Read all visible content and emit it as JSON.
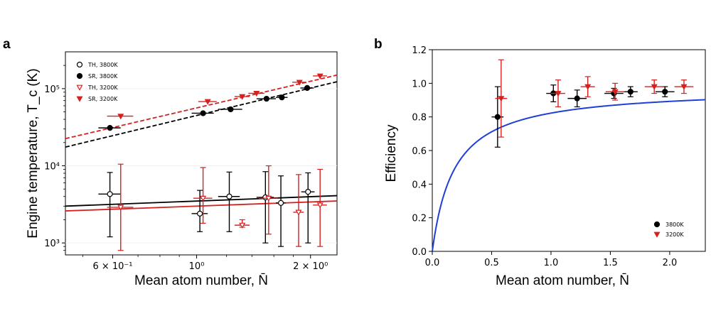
{
  "chart_data": [
    {
      "panel": "a",
      "type": "scatter",
      "xlabel": "Mean atom number, N̄",
      "ylabel": "Engine temperature, T_c (K)",
      "xscale": "log",
      "yscale": "log",
      "xlim": [
        0.45,
        2.35
      ],
      "ylim": [
        700,
        300000
      ],
      "xticks": [
        {
          "value": 0.6,
          "label": "6 × 10⁻¹"
        },
        {
          "value": 1.0,
          "label": "10⁰"
        },
        {
          "value": 2.0,
          "label": "2 × 10⁰"
        }
      ],
      "yticks": [
        {
          "value": 1000,
          "label": "10³"
        },
        {
          "value": 10000,
          "label": "10⁴"
        },
        {
          "value": 100000,
          "label": "10⁵"
        }
      ],
      "legend_position": "top-left",
      "legend": [
        {
          "label": "TH, 3800K",
          "marker": "circle-open",
          "color": "#000000"
        },
        {
          "label": "SR, 3800K",
          "marker": "circle",
          "color": "#000000"
        },
        {
          "label": "TH, 3200K",
          "marker": "triangle-open",
          "color": "#d62020"
        },
        {
          "label": "SR, 3200K",
          "marker": "triangle",
          "color": "#d62020"
        }
      ],
      "series": [
        {
          "marker": "circle-open",
          "color": "#000000",
          "points": [
            {
              "x": 0.59,
              "y": 4300,
              "xerr": 0.04,
              "ylo": 1200,
              "yhi": 8200
            },
            {
              "x": 1.02,
              "y": 2400,
              "xerr": 0.05,
              "ylo": 1400,
              "yhi": 4800
            },
            {
              "x": 1.22,
              "y": 4000,
              "xerr": 0.08,
              "ylo": 1400,
              "yhi": 8300
            },
            {
              "x": 1.52,
              "y": 3900,
              "xerr": 0.08,
              "ylo": 1000,
              "yhi": 8400
            },
            {
              "x": 1.67,
              "y": 3300,
              "xerr": 0.05,
              "ylo": 900,
              "yhi": 7400
            },
            {
              "x": 1.97,
              "y": 4600,
              "xerr": 0.08,
              "ylo": 1000,
              "yhi": 8100
            }
          ]
        },
        {
          "marker": "circle",
          "color": "#000000",
          "points": [
            {
              "x": 0.59,
              "y": 31000,
              "xerr": 0.04
            },
            {
              "x": 1.04,
              "y": 48000,
              "xerr": 0.07
            },
            {
              "x": 1.23,
              "y": 54000,
              "xerr": 0.09
            },
            {
              "x": 1.53,
              "y": 74000,
              "xerr": 0.09
            },
            {
              "x": 1.68,
              "y": 77000,
              "xerr": 0.06
            },
            {
              "x": 1.96,
              "y": 102000,
              "xerr": 0.08
            }
          ]
        },
        {
          "marker": "triangle-open",
          "color": "#d62020",
          "points": [
            {
              "x": 0.63,
              "y": 2900,
              "xerr": 0.05,
              "ylo": 800,
              "yhi": 10500
            },
            {
              "x": 1.04,
              "y": 3800,
              "xerr": 0.06,
              "ylo": 1800,
              "yhi": 9500
            },
            {
              "x": 1.32,
              "y": 1700,
              "xerr": 0.06,
              "ylo": 1600,
              "yhi": 2000
            },
            {
              "x": 1.55,
              "y": 3800,
              "xerr": 0.09,
              "ylo": 1300,
              "yhi": 10000
            },
            {
              "x": 1.86,
              "y": 2500,
              "xerr": 0.06,
              "ylo": 900,
              "yhi": 7700
            },
            {
              "x": 2.12,
              "y": 3100,
              "xerr": 0.09,
              "ylo": 900,
              "yhi": 9000
            }
          ]
        },
        {
          "marker": "triangle",
          "color": "#d62020",
          "points": [
            {
              "x": 0.63,
              "y": 44000,
              "xerr": 0.05
            },
            {
              "x": 1.07,
              "y": 68000,
              "xerr": 0.06
            },
            {
              "x": 1.32,
              "y": 79000,
              "xerr": 0.06
            },
            {
              "x": 1.44,
              "y": 87000,
              "xerr": 0.07
            },
            {
              "x": 1.87,
              "y": 121000,
              "xerr": 0.08
            },
            {
              "x": 2.12,
              "y": 146000,
              "xerr": 0.09
            }
          ]
        }
      ],
      "fit_lines": [
        {
          "color": "#000000",
          "style": "dashed",
          "x": [
            0.45,
            2.35
          ],
          "y": [
            17500,
            123000
          ]
        },
        {
          "color": "#d62020",
          "style": "dashed",
          "x": [
            0.45,
            2.35
          ],
          "y": [
            22500,
            150000
          ]
        },
        {
          "color": "#000000",
          "style": "solid",
          "x": [
            0.45,
            2.35
          ],
          "y": [
            3000,
            4100
          ]
        },
        {
          "color": "#d62020",
          "style": "solid",
          "x": [
            0.45,
            2.35
          ],
          "y": [
            2600,
            3500
          ]
        }
      ]
    },
    {
      "panel": "b",
      "type": "scatter",
      "xlabel": "Mean atom number, N̄",
      "ylabel": "Efficiency",
      "xlim": [
        0.0,
        2.3
      ],
      "ylim": [
        0.0,
        1.2
      ],
      "xticks": [
        {
          "value": 0.0,
          "label": "0.0"
        },
        {
          "value": 0.5,
          "label": "0.5"
        },
        {
          "value": 1.0,
          "label": "1.0"
        },
        {
          "value": 1.5,
          "label": "1.5"
        },
        {
          "value": 2.0,
          "label": "2.0"
        }
      ],
      "yticks": [
        {
          "value": 0.0,
          "label": "0.0"
        },
        {
          "value": 0.2,
          "label": "0.2"
        },
        {
          "value": 0.4,
          "label": "0.4"
        },
        {
          "value": 0.6,
          "label": "0.6"
        },
        {
          "value": 0.8,
          "label": "0.8"
        },
        {
          "value": 1.0,
          "label": "1.0"
        },
        {
          "value": 1.2,
          "label": "1.2"
        }
      ],
      "legend_position": "bottom-right",
      "legend": [
        {
          "label": "3800K",
          "marker": "circle",
          "color": "#000000"
        },
        {
          "label": "3200K",
          "marker": "triangle",
          "color": "#d62020"
        }
      ],
      "series": [
        {
          "marker": "circle",
          "color": "#000000",
          "points": [
            {
              "x": 0.55,
              "y": 0.8,
              "xerr": 0.05,
              "yerr": 0.18
            },
            {
              "x": 1.02,
              "y": 0.94,
              "xerr": 0.06,
              "yerr": 0.05
            },
            {
              "x": 1.22,
              "y": 0.91,
              "xerr": 0.08,
              "yerr": 0.05
            },
            {
              "x": 1.53,
              "y": 0.94,
              "xerr": 0.08,
              "yerr": 0.03
            },
            {
              "x": 1.67,
              "y": 0.95,
              "xerr": 0.06,
              "yerr": 0.03
            },
            {
              "x": 1.96,
              "y": 0.95,
              "xerr": 0.08,
              "yerr": 0.03
            }
          ]
        },
        {
          "marker": "triangle",
          "color": "#d62020",
          "points": [
            {
              "x": 0.58,
              "y": 0.91,
              "xerr": 0.05,
              "yerr": 0.23
            },
            {
              "x": 1.06,
              "y": 0.94,
              "xerr": 0.06,
              "yerr": 0.08
            },
            {
              "x": 1.31,
              "y": 0.98,
              "xerr": 0.06,
              "yerr": 0.06
            },
            {
              "x": 1.54,
              "y": 0.95,
              "xerr": 0.08,
              "yerr": 0.05
            },
            {
              "x": 1.87,
              "y": 0.98,
              "xerr": 0.08,
              "yerr": 0.04
            },
            {
              "x": 2.12,
              "y": 0.98,
              "xerr": 0.08,
              "yerr": 0.04
            }
          ]
        }
      ],
      "fit_lines": [
        {
          "color": "#1f3fd6",
          "style": "solid",
          "model": "saturating",
          "params": {
            "a": 0.975,
            "k": 5.4
          }
        }
      ]
    }
  ]
}
